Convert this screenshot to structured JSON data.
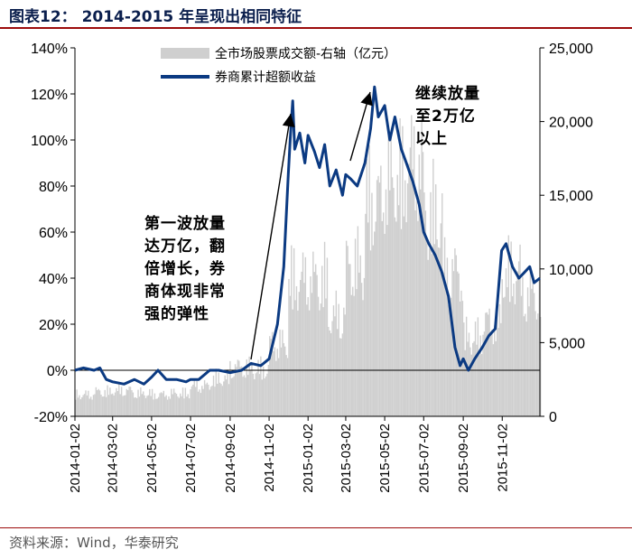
{
  "title": "图表12： 2014-2015 年呈现出相同特征",
  "source": "资料来源：Wind，华泰研究",
  "legend": {
    "bar_label": "全市场股票成交额-右轴（亿元）",
    "line_label": "券商累计超额收益"
  },
  "annotations": {
    "wave1_lines": [
      "第一波放量",
      "达万亿，翻",
      "倍增长，券",
      "商体现非常",
      "强的弹性"
    ],
    "wave2_lines": [
      "继续放量",
      "至2万亿",
      "以上"
    ]
  },
  "colors": {
    "line": "#0b3a82",
    "bars": "#cfcfcf",
    "axis": "#000000",
    "accent": "#9c0b0b"
  },
  "chart_data": {
    "type": "bar+line",
    "x_tick_labels": [
      "2014-01-02",
      "2014-03-02",
      "2014-05-02",
      "2014-07-02",
      "2014-09-02",
      "2014-11-02",
      "2015-01-02",
      "2015-03-02",
      "2015-05-02",
      "2015-07-02",
      "2015-09-02",
      "2015-11-02"
    ],
    "x_range": [
      "2014-01-02",
      "2015-12-31"
    ],
    "y_left": {
      "ticks": [
        "-20%",
        "0%",
        "20%",
        "40%",
        "60%",
        "80%",
        "100%",
        "120%",
        "140%"
      ],
      "range": [
        -20,
        140
      ],
      "unit": "%"
    },
    "y_right": {
      "ticks": [
        "0",
        "5,000",
        "10,000",
        "15,000",
        "20,000",
        "25,000"
      ],
      "range": [
        0,
        25000
      ]
    },
    "series": [
      {
        "name": "券商累计超额收益",
        "type": "line",
        "axis": "left",
        "points": [
          [
            "2014-01-02",
            0
          ],
          [
            "2014-01-15",
            1
          ],
          [
            "2014-02-01",
            0
          ],
          [
            "2014-02-10",
            1
          ],
          [
            "2014-02-20",
            -4
          ],
          [
            "2014-03-02",
            -5
          ],
          [
            "2014-03-20",
            -6
          ],
          [
            "2014-04-05",
            -4
          ],
          [
            "2014-04-20",
            -6
          ],
          [
            "2014-05-02",
            -3
          ],
          [
            "2014-05-12",
            0
          ],
          [
            "2014-05-25",
            -4
          ],
          [
            "2014-06-10",
            -4
          ],
          [
            "2014-06-25",
            -5
          ],
          [
            "2014-07-02",
            -4
          ],
          [
            "2014-07-15",
            -4
          ],
          [
            "2014-08-01",
            0
          ],
          [
            "2014-08-15",
            0
          ],
          [
            "2014-09-02",
            -1
          ],
          [
            "2014-09-20",
            0
          ],
          [
            "2014-10-05",
            3
          ],
          [
            "2014-10-20",
            2
          ],
          [
            "2014-11-02",
            5
          ],
          [
            "2014-11-15",
            20
          ],
          [
            "2014-11-25",
            45
          ],
          [
            "2014-12-02",
            85
          ],
          [
            "2014-12-05",
            100
          ],
          [
            "2014-12-09",
            117
          ],
          [
            "2014-12-12",
            96
          ],
          [
            "2014-12-20",
            103
          ],
          [
            "2014-12-28",
            90
          ],
          [
            "2015-01-02",
            102
          ],
          [
            "2015-01-12",
            95
          ],
          [
            "2015-01-20",
            88
          ],
          [
            "2015-01-28",
            98
          ],
          [
            "2015-02-05",
            80
          ],
          [
            "2015-02-15",
            87
          ],
          [
            "2015-02-25",
            76
          ],
          [
            "2015-03-02",
            85
          ],
          [
            "2015-03-10",
            83
          ],
          [
            "2015-03-20",
            80
          ],
          [
            "2015-04-01",
            90
          ],
          [
            "2015-04-10",
            105
          ],
          [
            "2015-04-16",
            123
          ],
          [
            "2015-04-22",
            110
          ],
          [
            "2015-05-02",
            115
          ],
          [
            "2015-05-10",
            100
          ],
          [
            "2015-05-18",
            110
          ],
          [
            "2015-05-28",
            96
          ],
          [
            "2015-06-05",
            90
          ],
          [
            "2015-06-15",
            82
          ],
          [
            "2015-06-25",
            72
          ],
          [
            "2015-07-02",
            60
          ],
          [
            "2015-07-10",
            55
          ],
          [
            "2015-07-20",
            50
          ],
          [
            "2015-07-30",
            43
          ],
          [
            "2015-08-10",
            32
          ],
          [
            "2015-08-20",
            10
          ],
          [
            "2015-08-28",
            2
          ],
          [
            "2015-09-02",
            5
          ],
          [
            "2015-09-10",
            0
          ],
          [
            "2015-09-20",
            5
          ],
          [
            "2015-10-02",
            10
          ],
          [
            "2015-10-12",
            15
          ],
          [
            "2015-10-22",
            18
          ],
          [
            "2015-11-01",
            52
          ],
          [
            "2015-11-08",
            55
          ],
          [
            "2015-11-18",
            45
          ],
          [
            "2015-11-28",
            40
          ],
          [
            "2015-12-05",
            42
          ],
          [
            "2015-12-15",
            45
          ],
          [
            "2015-12-22",
            38
          ],
          [
            "2015-12-31",
            40
          ]
        ]
      },
      {
        "name": "全市场股票成交额-右轴（亿元）",
        "type": "bar",
        "axis": "right",
        "monthly_typical_values": [
          [
            "2014-01",
            1500
          ],
          [
            "2014-02",
            1700
          ],
          [
            "2014-03",
            1800
          ],
          [
            "2014-04",
            1600
          ],
          [
            "2014-05",
            1500
          ],
          [
            "2014-06",
            1600
          ],
          [
            "2014-07",
            2100
          ],
          [
            "2014-08",
            2600
          ],
          [
            "2014-09",
            3400
          ],
          [
            "2014-10",
            3300
          ],
          [
            "2014-11",
            5000
          ],
          [
            "2014-12",
            9500
          ],
          [
            "2015-01",
            9500
          ],
          [
            "2015-02",
            7000
          ],
          [
            "2015-03",
            10500
          ],
          [
            "2015-04",
            15000
          ],
          [
            "2015-05",
            16500
          ],
          [
            "2015-06",
            17500
          ],
          [
            "2015-07",
            14000
          ],
          [
            "2015-08",
            10000
          ],
          [
            "2015-09",
            5500
          ],
          [
            "2015-10",
            6500
          ],
          [
            "2015-11",
            10000
          ],
          [
            "2015-12",
            8500
          ]
        ]
      }
    ]
  }
}
